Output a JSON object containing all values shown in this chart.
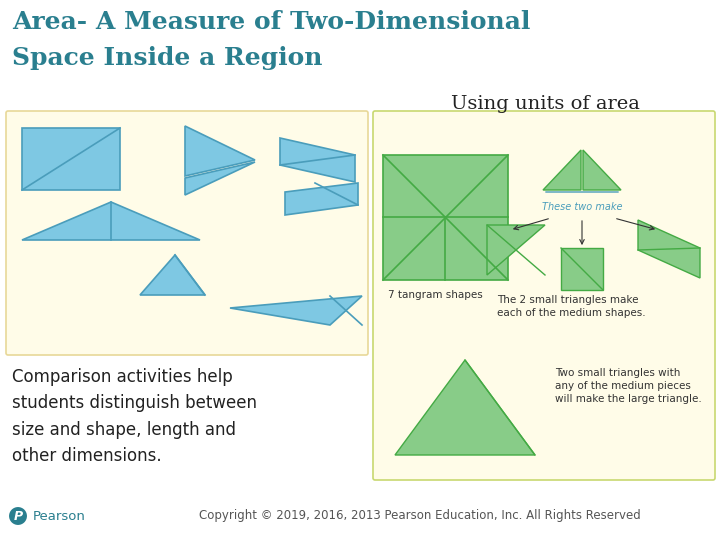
{
  "title_line1": "Area- A Measure of Two-Dimensional",
  "title_line2": "Space Inside a Region",
  "title_color": "#2a7f8f",
  "title_fontsize": 18,
  "subtitle_right": "Using units of area",
  "subtitle_color": "#222222",
  "subtitle_fontsize": 14,
  "body_text": "Comparison activities help\nstudents distinguish between\nsize and shape, length and\nother dimensions.",
  "body_fontsize": 12,
  "body_color": "#222222",
  "copyright_text": "Copyright © 2019, 2016, 2013 Pearson Education, Inc. All Rights Reserved",
  "copyright_fontsize": 8.5,
  "pearson_text": "Pearson",
  "pearson_color": "#2a7f8f",
  "left_box_bg": "#fffce8",
  "left_box_border": "#e8d898",
  "right_box_bg": "#fffce8",
  "right_box_border": "#c8d870",
  "shape_fill": "#7ec8e3",
  "shape_edge": "#4a9dbb",
  "tg_fill": "#88cc88",
  "tg_edge": "#44aa44",
  "these_two_make_color": "#4a9dbb",
  "bg_color": "#ffffff",
  "tangram_text_color": "#333333",
  "arrow_color": "#333333"
}
